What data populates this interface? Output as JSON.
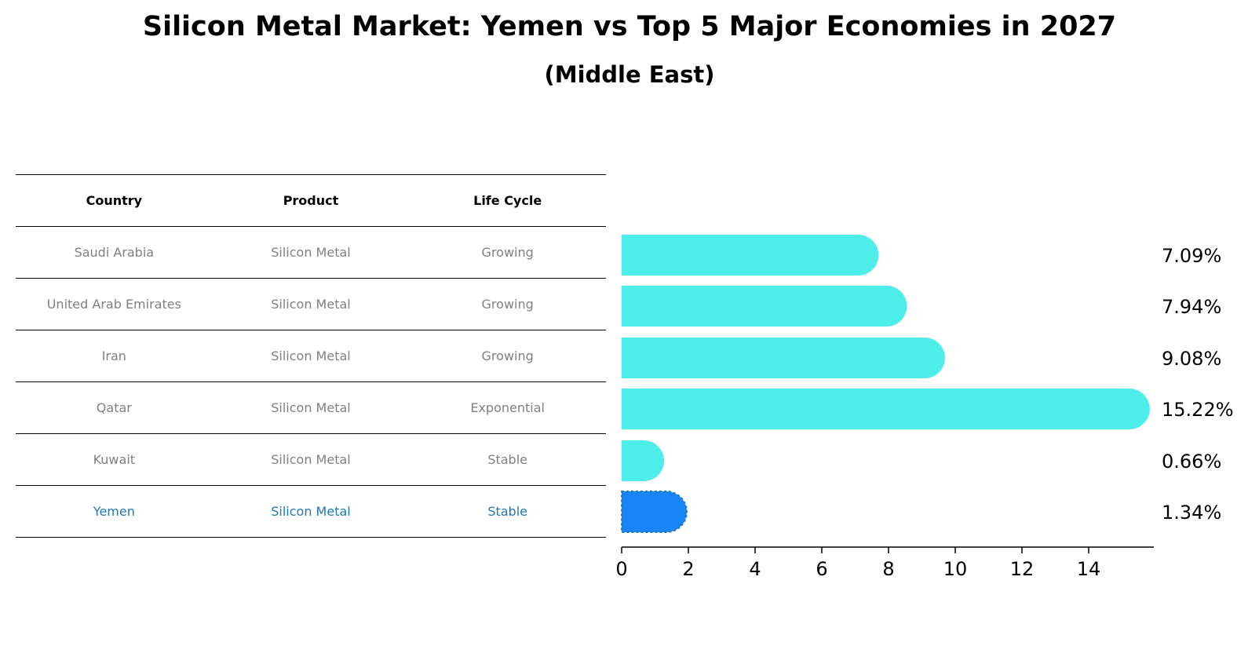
{
  "title": "Silicon Metal Market: Yemen vs Top 5 Major Economies in 2027",
  "subtitle": "(Middle East)",
  "table": {
    "headers": [
      "Country",
      "Product",
      "Life Cycle"
    ],
    "rows": [
      {
        "country": "Saudi Arabia",
        "product": "Silicon Metal",
        "life_cycle": "Growing"
      },
      {
        "country": "United Arab Emirates",
        "product": "Silicon Metal",
        "life_cycle": "Growing"
      },
      {
        "country": "Iran",
        "product": "Silicon Metal",
        "life_cycle": "Growing"
      },
      {
        "country": "Qatar",
        "product": "Silicon Metal",
        "life_cycle": "Exponential"
      },
      {
        "country": "Kuwait",
        "product": "Silicon Metal",
        "life_cycle": "Stable"
      },
      {
        "country": "Yemen",
        "product": "Silicon Metal",
        "life_cycle": "Stable"
      }
    ]
  },
  "chart_data": {
    "type": "bar",
    "orientation": "horizontal",
    "categories": [
      "Saudi Arabia",
      "United Arab Emirates",
      "Iran",
      "Qatar",
      "Kuwait",
      "Yemen"
    ],
    "values": [
      7.09,
      7.94,
      9.08,
      15.22,
      0.66,
      1.34
    ],
    "value_labels": [
      "7.09%",
      "7.94%",
      "9.08%",
      "15.22%",
      "0.66%",
      "1.34%"
    ],
    "highlight_category": "Yemen",
    "xlim": [
      0,
      16
    ],
    "xticks": [
      0,
      2,
      4,
      6,
      8,
      10,
      12,
      14
    ],
    "xlabel": "",
    "ylabel": "",
    "colors": {
      "default": "#4deeea",
      "highlight": "#1884f5"
    }
  }
}
